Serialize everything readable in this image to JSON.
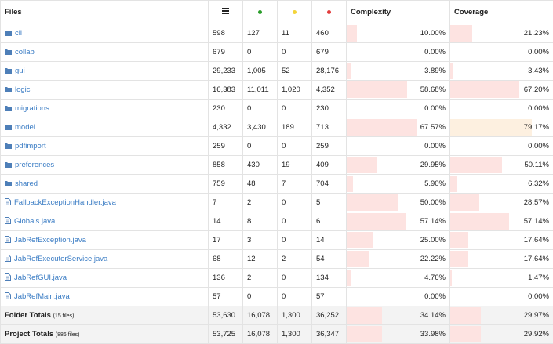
{
  "header": {
    "files": "Files",
    "total_icon": "menu-icon",
    "green_icon": "green-dot",
    "yellow_icon": "yellow-dot",
    "red_icon": "red-dot",
    "complexity": "Complexity",
    "coverage": "Coverage"
  },
  "colors": {
    "green": "#2a9d2a",
    "yellow": "#f3d43a",
    "red": "#e23b3b",
    "bar": "#fde3e1",
    "bar_warn": "#fdf0e0",
    "link": "#3a7cc4"
  },
  "rows": [
    {
      "type": "folder",
      "name": "cli",
      "total": "598",
      "green": "127",
      "yellow": "11",
      "red": "460",
      "complexity": "10.00%",
      "coverage": "21.23%",
      "cx": 10.0,
      "cv": 21.23
    },
    {
      "type": "folder",
      "name": "collab",
      "total": "679",
      "green": "0",
      "yellow": "0",
      "red": "679",
      "complexity": "0.00%",
      "coverage": "0.00%",
      "cx": 0,
      "cv": 0
    },
    {
      "type": "folder",
      "name": "gui",
      "total": "29,233",
      "green": "1,005",
      "yellow": "52",
      "red": "28,176",
      "complexity": "3.89%",
      "coverage": "3.43%",
      "cx": 3.89,
      "cv": 3.43
    },
    {
      "type": "folder",
      "name": "logic",
      "total": "16,383",
      "green": "11,011",
      "yellow": "1,020",
      "red": "4,352",
      "complexity": "58.68%",
      "coverage": "67.20%",
      "cx": 58.68,
      "cv": 67.2
    },
    {
      "type": "folder",
      "name": "migrations",
      "total": "230",
      "green": "0",
      "yellow": "0",
      "red": "230",
      "complexity": "0.00%",
      "coverage": "0.00%",
      "cx": 0,
      "cv": 0
    },
    {
      "type": "folder",
      "name": "model",
      "total": "4,332",
      "green": "3,430",
      "yellow": "189",
      "red": "713",
      "complexity": "67.57%",
      "coverage": "79.17%",
      "cx": 67.57,
      "cv": 79.17,
      "cv_warn": true
    },
    {
      "type": "folder",
      "name": "pdfimport",
      "total": "259",
      "green": "0",
      "yellow": "0",
      "red": "259",
      "complexity": "0.00%",
      "coverage": "0.00%",
      "cx": 0,
      "cv": 0
    },
    {
      "type": "folder",
      "name": "preferences",
      "total": "858",
      "green": "430",
      "yellow": "19",
      "red": "409",
      "complexity": "29.95%",
      "coverage": "50.11%",
      "cx": 29.95,
      "cv": 50.11
    },
    {
      "type": "folder",
      "name": "shared",
      "total": "759",
      "green": "48",
      "yellow": "7",
      "red": "704",
      "complexity": "5.90%",
      "coverage": "6.32%",
      "cx": 5.9,
      "cv": 6.32
    },
    {
      "type": "file",
      "name": "FallbackExceptionHandler.java",
      "total": "7",
      "green": "2",
      "yellow": "0",
      "red": "5",
      "complexity": "50.00%",
      "coverage": "28.57%",
      "cx": 50.0,
      "cv": 28.57
    },
    {
      "type": "file",
      "name": "Globals.java",
      "total": "14",
      "green": "8",
      "yellow": "0",
      "red": "6",
      "complexity": "57.14%",
      "coverage": "57.14%",
      "cx": 57.14,
      "cv": 57.14
    },
    {
      "type": "file",
      "name": "JabRefException.java",
      "total": "17",
      "green": "3",
      "yellow": "0",
      "red": "14",
      "complexity": "25.00%",
      "coverage": "17.64%",
      "cx": 25.0,
      "cv": 17.64
    },
    {
      "type": "file",
      "name": "JabRefExecutorService.java",
      "total": "68",
      "green": "12",
      "yellow": "2",
      "red": "54",
      "complexity": "22.22%",
      "coverage": "17.64%",
      "cx": 22.22,
      "cv": 17.64
    },
    {
      "type": "file",
      "name": "JabRefGUI.java",
      "total": "136",
      "green": "2",
      "yellow": "0",
      "red": "134",
      "complexity": "4.76%",
      "coverage": "1.47%",
      "cx": 4.76,
      "cv": 1.47
    },
    {
      "type": "file",
      "name": "JabRefMain.java",
      "total": "57",
      "green": "0",
      "yellow": "0",
      "red": "57",
      "complexity": "0.00%",
      "coverage": "0.00%",
      "cx": 0,
      "cv": 0
    }
  ],
  "footer": [
    {
      "label": "Folder Totals",
      "note": "(15 files)",
      "total": "53,630",
      "green": "16,078",
      "yellow": "1,300",
      "red": "36,252",
      "complexity": "34.14%",
      "coverage": "29.97%",
      "cx": 34.14,
      "cv": 29.97
    },
    {
      "label": "Project Totals",
      "note": "(886 files)",
      "total": "53,725",
      "green": "16,078",
      "yellow": "1,300",
      "red": "36,347",
      "complexity": "33.98%",
      "coverage": "29.92%",
      "cx": 33.98,
      "cv": 29.92
    }
  ]
}
